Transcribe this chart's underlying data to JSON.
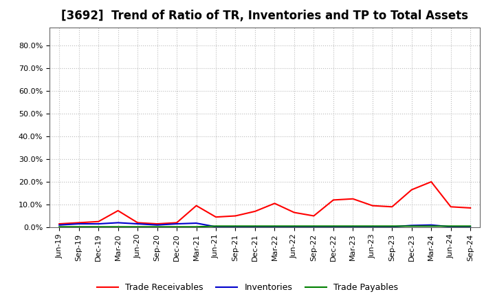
{
  "title": "[3692]  Trend of Ratio of TR, Inventories and TP to Total Assets",
  "labels": [
    "Jun-19",
    "Sep-19",
    "Dec-19",
    "Mar-20",
    "Jun-20",
    "Sep-20",
    "Dec-20",
    "Mar-21",
    "Jun-21",
    "Sep-21",
    "Dec-21",
    "Mar-22",
    "Jun-22",
    "Sep-22",
    "Dec-22",
    "Mar-23",
    "Jun-23",
    "Sep-23",
    "Dec-23",
    "Mar-24",
    "Jun-24",
    "Sep-24"
  ],
  "trade_receivables": [
    0.015,
    0.02,
    0.025,
    0.073,
    0.02,
    0.015,
    0.02,
    0.095,
    0.045,
    0.05,
    0.07,
    0.105,
    0.065,
    0.05,
    0.12,
    0.125,
    0.095,
    0.09,
    0.165,
    0.2,
    0.09,
    0.085
  ],
  "inventories": [
    0.01,
    0.015,
    0.015,
    0.02,
    0.015,
    0.01,
    0.015,
    0.018,
    0.002,
    0.002,
    0.002,
    0.002,
    0.002,
    0.002,
    0.002,
    0.002,
    0.002,
    0.002,
    0.008,
    0.01,
    0.002,
    0.002
  ],
  "trade_payables": [
    0.002,
    0.002,
    0.002,
    0.002,
    0.002,
    0.002,
    0.002,
    0.002,
    0.005,
    0.005,
    0.005,
    0.005,
    0.005,
    0.005,
    0.005,
    0.005,
    0.005,
    0.005,
    0.005,
    0.005,
    0.005,
    0.005
  ],
  "tr_color": "#ff0000",
  "inv_color": "#0000cc",
  "tp_color": "#008000",
  "ylim": [
    0.0,
    0.88
  ],
  "yticks": [
    0.0,
    0.1,
    0.2,
    0.3,
    0.4,
    0.5,
    0.6,
    0.7,
    0.8
  ],
  "legend_labels": [
    "Trade Receivables",
    "Inventories",
    "Trade Payables"
  ],
  "background_color": "#ffffff",
  "plot_bg_color": "#ffffff",
  "grid_color": "#bbbbbb",
  "title_fontsize": 12,
  "tick_fontsize": 8,
  "legend_fontsize": 9
}
